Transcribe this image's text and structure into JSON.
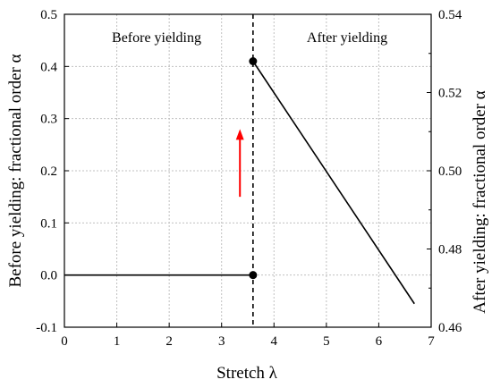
{
  "chart_data": {
    "type": "line",
    "xlabel": "Stretch λ",
    "ylabel_left": "Before yielding: fractional order α",
    "ylabel_right": "After yielding: fractional order α",
    "xlim": [
      0,
      7
    ],
    "ylim_left": [
      -0.1,
      0.5
    ],
    "ylim_right": [
      0.46,
      0.54
    ],
    "xticks": [
      "0",
      "1",
      "2",
      "3",
      "4",
      "5",
      "6",
      "7"
    ],
    "yticks_left": [
      "-0.1",
      "0.0",
      "0.1",
      "0.2",
      "0.3",
      "0.4",
      "0.5"
    ],
    "yticks_right": [
      "0.46",
      "0.48",
      "0.50",
      "0.52",
      "0.54"
    ],
    "grid": true,
    "yield_stretch": 3.6,
    "regions": {
      "before": "Before yielding",
      "after": "After yielding"
    },
    "series": [
      {
        "axis": "left",
        "x": [
          0,
          3.6
        ],
        "y": [
          0.0,
          0.0
        ],
        "end_marker": true
      },
      {
        "axis": "right",
        "x": [
          3.6,
          6.68
        ],
        "y": [
          0.528,
          0.466
        ],
        "start_marker": true
      }
    ],
    "arrow": {
      "x": 3.35,
      "y_from": 0.15,
      "y_to": 0.28,
      "color": "#ff0000"
    }
  }
}
